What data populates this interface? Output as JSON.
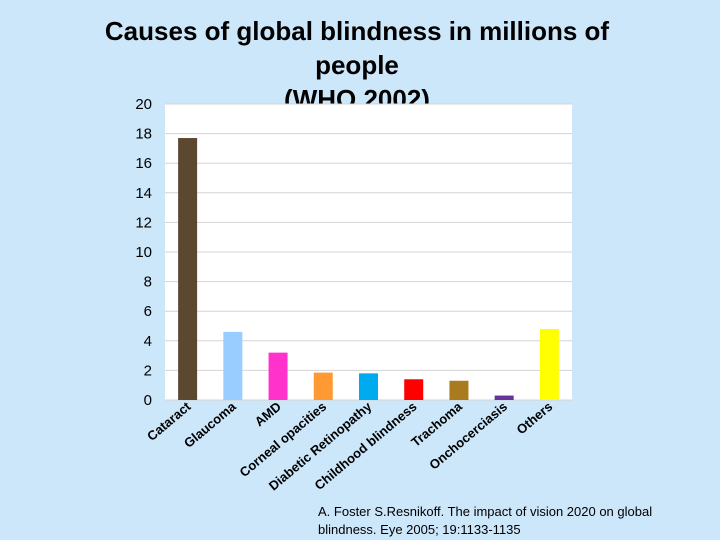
{
  "chart_data": {
    "type": "bar",
    "title_lines": [
      "Causes of global blindness in millions of",
      "people",
      "(WHO 2002)"
    ],
    "xlabel": "",
    "ylabel": "",
    "ylim": [
      0,
      20
    ],
    "yticks": [
      0,
      2,
      4,
      6,
      8,
      10,
      12,
      14,
      16,
      18,
      20
    ],
    "grid": true,
    "categories": [
      "Cataract",
      "Glaucoma",
      "AMD",
      "Corneal opacities",
      "Diabetic Retinopathy",
      "Childhood blindness",
      "Trachoma",
      "Onchocerciasis",
      "Others"
    ],
    "values": [
      17.7,
      4.6,
      3.2,
      1.85,
      1.8,
      1.4,
      1.3,
      0.3,
      4.8
    ],
    "colors": [
      "#5c4731",
      "#99ccff",
      "#ff33cc",
      "#ff9933",
      "#00aaee",
      "#ff0000",
      "#aa7a1e",
      "#663399",
      "#ffff00"
    ]
  },
  "citation": {
    "line1": "A. Foster S.Resnikoff. The impact of vision 2020 on global",
    "line2": "blindness. Eye 2005; 19:1133-1135"
  }
}
